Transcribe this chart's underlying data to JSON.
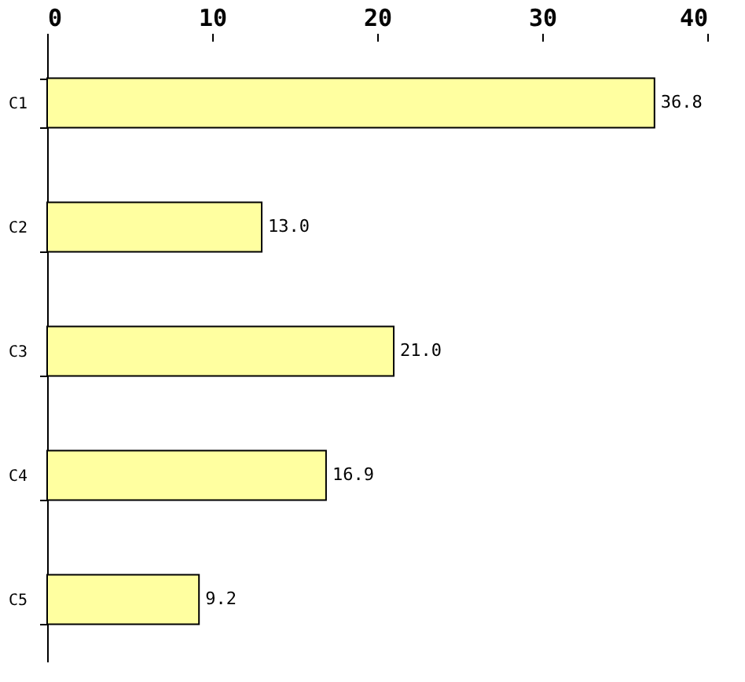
{
  "chart_data": {
    "type": "bar",
    "orientation": "horizontal",
    "categories": [
      "C1",
      "C2",
      "C3",
      "C4",
      "C5"
    ],
    "values": [
      36.8,
      13.0,
      21.0,
      16.9,
      9.2
    ],
    "value_labels": [
      "36.8",
      "13.0",
      "21.0",
      "16.9",
      "9.2"
    ],
    "color": "#ffffa0",
    "xlim": [
      0,
      40
    ],
    "xticks": [
      0,
      10,
      20,
      30,
      40
    ],
    "grid": false
  }
}
